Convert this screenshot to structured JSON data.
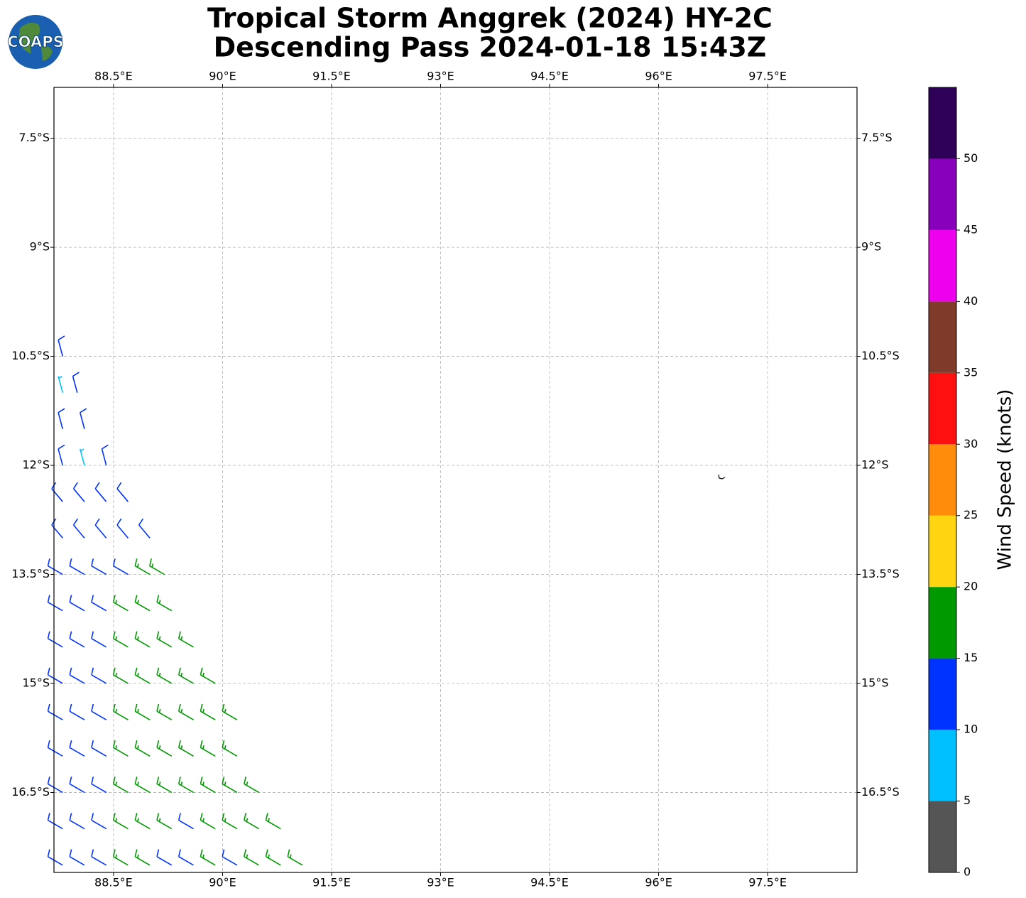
{
  "chart_data": {
    "type": "wind-barb-map",
    "logo": "COAPS",
    "title": "Tropical Storm Anggrek (2024) HY-2C",
    "subtitle": "Descending Pass 2024-01-18 15:43Z",
    "xlim": [
      87.68,
      98.73
    ],
    "ylim": [
      -17.6,
      -6.8
    ],
    "xticks": [
      {
        "value": 88.5,
        "label": "88.5°E"
      },
      {
        "value": 90,
        "label": "90°E"
      },
      {
        "value": 91.5,
        "label": "91.5°E"
      },
      {
        "value": 93,
        "label": "93°E"
      },
      {
        "value": 94.5,
        "label": "94.5°E"
      },
      {
        "value": 96,
        "label": "96°E"
      },
      {
        "value": 97.5,
        "label": "97.5°E"
      }
    ],
    "yticks": [
      {
        "value": -7.5,
        "label": "7.5°S"
      },
      {
        "value": -9,
        "label": "9°S"
      },
      {
        "value": -10.5,
        "label": "10.5°S"
      },
      {
        "value": -12,
        "label": "12°S"
      },
      {
        "value": -13.5,
        "label": "13.5°S"
      },
      {
        "value": -15,
        "label": "15°S"
      },
      {
        "value": -16.5,
        "label": "16.5°S"
      }
    ],
    "grid": true,
    "colorbar": {
      "label": "Wind Speed (knots)",
      "levels": [
        0,
        5,
        10,
        15,
        20,
        25,
        30,
        35,
        40,
        45,
        50,
        55
      ],
      "colors": [
        "#555555",
        "#00bfff",
        "#0033ff",
        "#009900",
        "#ffd511",
        "#ff8c0a",
        "#ff1010",
        "#7f3a2a",
        "#ee00ee",
        "#8800bb",
        "#2e0057"
      ],
      "ticks": [
        0,
        5,
        10,
        15,
        20,
        25,
        30,
        35,
        40,
        45,
        50
      ]
    },
    "barb_rows": [
      {
        "lat": -10.5,
        "direction": 345,
        "lon": [
          87.8
        ],
        "speed": [
          12
        ]
      },
      {
        "lat": -11,
        "direction": 345,
        "lon": [
          87.8,
          88.0
        ],
        "speed": [
          8,
          12
        ]
      },
      {
        "lat": -11.5,
        "direction": 345,
        "lon": [
          87.8,
          88.1
        ],
        "speed": [
          12,
          12
        ]
      },
      {
        "lat": -12,
        "direction": 345,
        "lon": [
          87.8,
          88.1,
          88.4
        ],
        "speed": [
          12,
          8,
          12
        ]
      },
      {
        "lat": -12.5,
        "direction": 320,
        "lon": [
          87.8,
          88.1,
          88.4,
          88.7
        ],
        "speed": [
          12,
          12,
          12,
          12
        ]
      },
      {
        "lat": -13,
        "direction": 320,
        "lon": [
          87.8,
          88.1,
          88.4,
          88.7,
          89.0
        ],
        "speed": [
          12,
          12,
          12,
          12,
          12
        ]
      },
      {
        "lat": -13.5,
        "direction": 300,
        "lon": [
          87.8,
          88.1,
          88.4,
          88.7,
          89.0,
          89.2
        ],
        "speed": [
          12,
          12,
          12,
          12,
          17,
          17
        ]
      },
      {
        "lat": -14,
        "direction": 300,
        "lon": [
          87.8,
          88.1,
          88.4,
          88.7,
          89.0,
          89.3
        ],
        "speed": [
          12,
          12,
          12,
          17,
          17,
          17
        ]
      },
      {
        "lat": -14.5,
        "direction": 300,
        "lon": [
          87.8,
          88.1,
          88.4,
          88.7,
          89.0,
          89.3,
          89.6
        ],
        "speed": [
          12,
          12,
          12,
          17,
          17,
          17,
          17
        ]
      },
      {
        "lat": -15,
        "direction": 300,
        "lon": [
          87.8,
          88.1,
          88.4,
          88.7,
          89.0,
          89.3,
          89.6,
          89.9
        ],
        "speed": [
          12,
          12,
          12,
          17,
          17,
          17,
          17,
          17
        ]
      },
      {
        "lat": -15.5,
        "direction": 300,
        "lon": [
          87.8,
          88.1,
          88.4,
          88.7,
          89.0,
          89.3,
          89.6,
          89.9,
          90.2
        ],
        "speed": [
          12,
          12,
          12,
          17,
          17,
          17,
          17,
          17,
          17
        ]
      },
      {
        "lat": -16,
        "direction": 300,
        "lon": [
          87.8,
          88.1,
          88.4,
          88.7,
          89.0,
          89.3,
          89.6,
          89.9,
          90.2
        ],
        "speed": [
          12,
          12,
          12,
          17,
          17,
          17,
          17,
          17,
          17
        ]
      },
      {
        "lat": -16.5,
        "direction": 300,
        "lon": [
          87.8,
          88.1,
          88.4,
          88.7,
          89.0,
          89.3,
          89.6,
          89.9,
          90.2,
          90.5
        ],
        "speed": [
          12,
          12,
          12,
          17,
          17,
          17,
          17,
          17,
          17,
          17
        ]
      },
      {
        "lat": -17,
        "direction": 300,
        "lon": [
          87.8,
          88.1,
          88.4,
          88.7,
          89.0,
          89.3,
          89.6,
          89.9,
          90.2,
          90.5,
          90.8
        ],
        "speed": [
          12,
          12,
          12,
          17,
          17,
          17,
          12,
          17,
          17,
          17,
          17
        ]
      },
      {
        "lat": -17.5,
        "direction": 300,
        "lon": [
          87.8,
          88.1,
          88.4,
          88.7,
          89.0,
          89.3,
          89.6,
          89.9,
          90.2,
          90.5,
          90.8,
          91.1
        ],
        "speed": [
          12,
          12,
          12,
          17,
          17,
          12,
          12,
          17,
          12,
          17,
          17,
          17
        ]
      }
    ]
  }
}
